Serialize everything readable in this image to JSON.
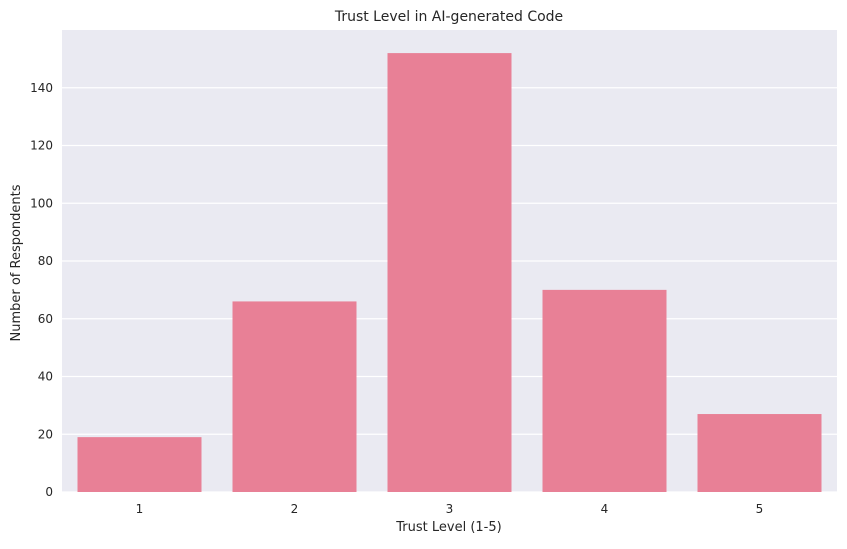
{
  "chart_data": {
    "type": "bar",
    "title": "Trust Level in AI-generated Code",
    "xlabel": "Trust Level (1-5)",
    "ylabel": "Number of Respondents",
    "categories": [
      "1",
      "2",
      "3",
      "4",
      "5"
    ],
    "values": [
      19,
      66,
      152,
      70,
      27
    ],
    "ylim": [
      0,
      160
    ],
    "yticks": [
      0,
      20,
      40,
      60,
      80,
      100,
      120,
      140
    ],
    "grid": true,
    "colors": {
      "bar": "#E88096",
      "plot_background": "#EAEAF2",
      "grid": "#FFFFFF"
    }
  }
}
